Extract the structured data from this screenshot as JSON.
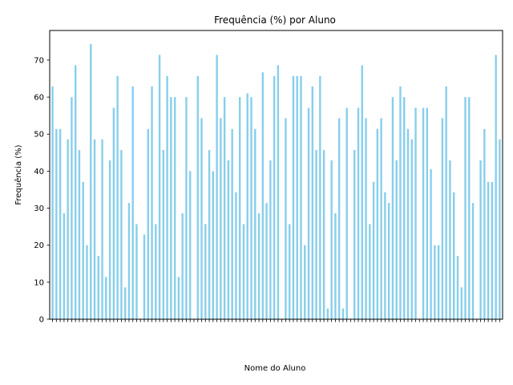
{
  "chart_data": {
    "type": "bar",
    "title": "Frequência (%) por Aluno",
    "xlabel": "Nome do Aluno",
    "ylabel": "Frequência (%)",
    "ylim": [
      0,
      78
    ],
    "yticks": [
      0,
      10,
      20,
      30,
      40,
      50,
      60,
      70
    ],
    "bar_color": "#87ceeb",
    "grid": false,
    "legend": "none",
    "values": [
      62.9,
      51.4,
      51.4,
      28.6,
      48.6,
      60.0,
      68.6,
      45.7,
      37.1,
      20.0,
      74.3,
      48.6,
      17.1,
      48.6,
      11.4,
      42.9,
      57.1,
      65.7,
      45.7,
      8.6,
      31.4,
      62.9,
      25.7,
      0,
      22.9,
      51.4,
      62.9,
      25.7,
      71.4,
      45.7,
      65.7,
      60.0,
      60.0,
      11.4,
      28.6,
      60.0,
      40.0,
      0,
      65.7,
      54.3,
      25.7,
      45.7,
      40.0,
      71.4,
      54.3,
      60.0,
      42.9,
      51.4,
      34.3,
      60.0,
      25.7,
      61.0,
      60.0,
      51.4,
      28.6,
      66.7,
      31.4,
      42.9,
      65.7,
      68.6,
      0,
      54.3,
      25.7,
      65.7,
      65.7,
      65.7,
      20.0,
      57.1,
      62.9,
      45.7,
      65.7,
      45.7,
      2.9,
      42.9,
      28.6,
      54.3,
      2.9,
      57.1,
      0,
      45.7,
      57.1,
      68.6,
      54.3,
      25.7,
      37.1,
      51.4,
      54.3,
      34.3,
      31.4,
      60.0,
      42.9,
      62.9,
      60.0,
      51.4,
      48.6,
      57.1,
      0,
      57.1,
      57.1,
      40.5,
      20.0,
      20.0,
      54.3,
      62.9,
      42.9,
      34.3,
      17.1,
      8.6,
      60.0,
      60.0,
      31.4,
      0,
      42.9,
      51.4,
      37.1,
      37.1,
      71.4,
      48.6
    ]
  }
}
